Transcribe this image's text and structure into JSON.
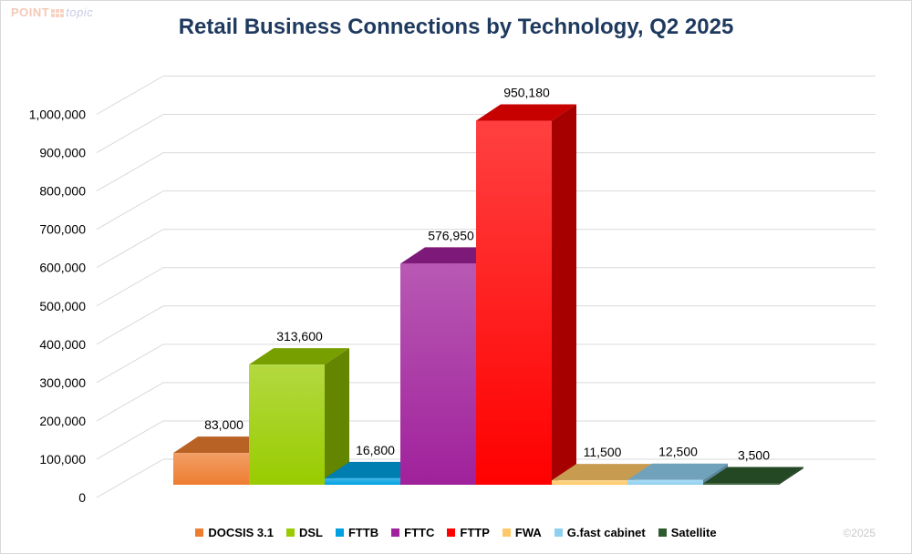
{
  "logo": {
    "point": "POINT",
    "topic": "topic"
  },
  "copyright": "©2025",
  "chart_data": {
    "type": "bar",
    "title": "Retail Business Connections by Technology, Q2 2025",
    "xlabel": "",
    "ylabel": "",
    "ylim": [
      0,
      1000000
    ],
    "yticks": [
      0,
      100000,
      200000,
      300000,
      400000,
      500000,
      600000,
      700000,
      800000,
      900000,
      1000000
    ],
    "ytick_labels": [
      "0",
      "100,000",
      "200,000",
      "300,000",
      "400,000",
      "500,000",
      "600,000",
      "700,000",
      "800,000",
      "900,000",
      "1,000,000"
    ],
    "grid": true,
    "legend_position": "bottom",
    "categories": [
      "DOCSIS 3.1",
      "DSL",
      "FTTB",
      "FTTC",
      "FTTP",
      "FWA",
      "G.fast cabinet",
      "Satellite"
    ],
    "values": [
      83000,
      313600,
      16800,
      576950,
      950180,
      11500,
      12500,
      3500
    ],
    "data_labels": [
      "83,000",
      "313,600",
      "16,800",
      "576,950",
      "950,180",
      "11,500",
      "12,500",
      "3,500"
    ],
    "colors": [
      "#ed7d31",
      "#99cc00",
      "#00a0e3",
      "#a0219b",
      "#ff0000",
      "#ffc866",
      "#8fd0f0",
      "#2e5b2e"
    ]
  }
}
